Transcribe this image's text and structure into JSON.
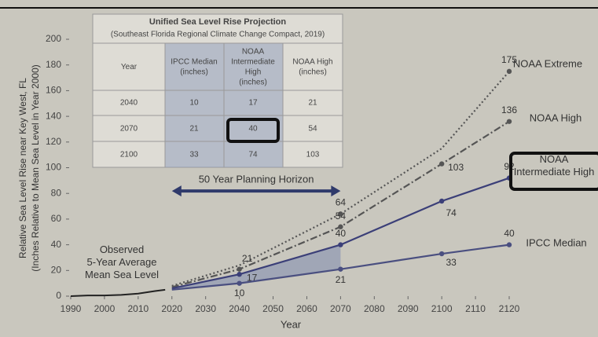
{
  "chart_data": {
    "type": "line",
    "y_label": [
      "Relative Sea Level Rise near Key West, FL",
      "(Inches Relative to Mean Sea Level in Year 2000)"
    ],
    "x_label": "Year",
    "xlim": [
      1990,
      2120
    ],
    "xticks": [
      1990,
      2000,
      2010,
      2020,
      2030,
      2040,
      2050,
      2060,
      2070,
      2080,
      2090,
      2100,
      2110,
      2120
    ],
    "ylim": [
      0,
      200
    ],
    "yticks": [
      0,
      20,
      40,
      60,
      80,
      100,
      120,
      140,
      160,
      180,
      200
    ],
    "series": [
      {
        "name": "NOAA Extreme",
        "color": "#555555",
        "dash": "2,3",
        "x": [
          2020,
          2040,
          2070,
          2100,
          2120
        ],
        "values": [
          8,
          24,
          64,
          115,
          175
        ],
        "value_labels": [
          null,
          null,
          "64",
          null,
          "175"
        ]
      },
      {
        "name": "NOAA High",
        "color": "#555555",
        "dash": "9,3,2,3",
        "x": [
          2020,
          2040,
          2070,
          2100,
          2120
        ],
        "values": [
          7,
          21,
          54,
          103,
          136
        ],
        "value_labels": [
          null,
          "21",
          "54",
          "103",
          "136"
        ]
      },
      {
        "name": "NOAA Intermediate High",
        "color": "#3b3f78",
        "dash": "",
        "x": [
          2020,
          2040,
          2070,
          2100,
          2120
        ],
        "values": [
          6,
          17,
          40,
          74,
          92
        ],
        "value_labels": [
          null,
          "17",
          "40",
          "74",
          "92"
        ]
      },
      {
        "name": "IPCC Median",
        "color": "#4a4f80",
        "dash": "",
        "x": [
          2020,
          2040,
          2070,
          2100,
          2120
        ],
        "values": [
          5,
          10,
          21,
          33,
          40
        ],
        "value_labels": [
          null,
          "10",
          "21",
          "33",
          "40"
        ]
      },
      {
        "name": "Observed 5-Year Average Mean Sea Level",
        "color": "#222222",
        "dash": "",
        "x": [
          1990,
          1995,
          2000,
          2005,
          2010,
          2015,
          2018
        ],
        "values": [
          0,
          0.5,
          0.5,
          1,
          2,
          4,
          5
        ],
        "value_labels": [
          null,
          null,
          null,
          null,
          null,
          null,
          null
        ]
      }
    ],
    "annotation": "50 Year Planning Horizon",
    "annotation_span": [
      2020,
      2070
    ],
    "annotation_y": 88
  },
  "table": {
    "title": "Unified Sea Level Rise Projection",
    "subtitle": "(Southeast Florida Regional Climate Change Compact, 2019)",
    "header": [
      "Year",
      "IPCC Median (inches)",
      "NOAA Intermediate High (inches)",
      "NOAA High (inches)"
    ],
    "rows": [
      [
        "2040",
        "10",
        "17",
        "21"
      ],
      [
        "2070",
        "21",
        "40",
        "54"
      ],
      [
        "2100",
        "33",
        "74",
        "103"
      ]
    ]
  }
}
